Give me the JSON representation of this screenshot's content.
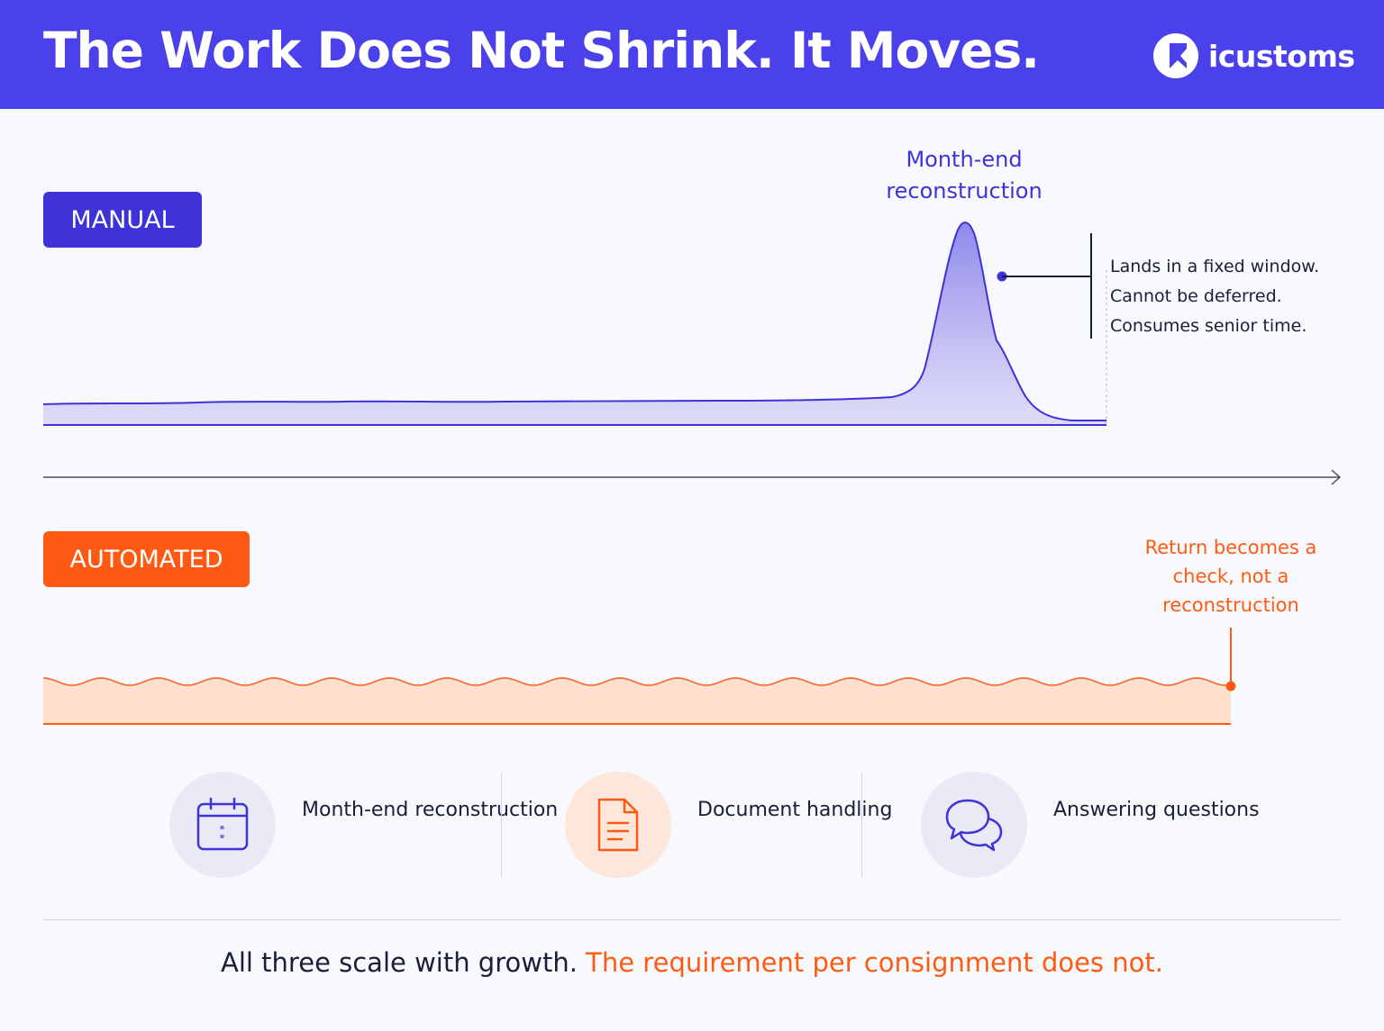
{
  "header": {
    "title": "The Work Does Not Shrink. It Moves.",
    "brand": "icustoms"
  },
  "manual": {
    "label": "MANUAL",
    "peak_label": "Month-end reconstruction",
    "notes": [
      "Lands in a fixed window.",
      "Cannot be deferred.",
      "Consumes senior time."
    ]
  },
  "automated": {
    "label": "AUTOMATED",
    "end_note": "Return becomes a check, not a reconstruction"
  },
  "categories": [
    {
      "label": "Month-end reconstruction",
      "icon": "calendar-icon",
      "color": "#3d33d8"
    },
    {
      "label": "Document handling",
      "icon": "document-icon",
      "color": "#ff5a14"
    },
    {
      "label": "Answering questions",
      "icon": "chat-bubbles-icon",
      "color": "#3d33d8"
    }
  ],
  "footer": {
    "part1": "All three scale with growth.",
    "part2": "The requirement per consignment does not."
  },
  "colors": {
    "header_bg": "#4a41ea",
    "manual": "#3d33d8",
    "automated": "#ff5a14",
    "text": "#1b1d3a"
  }
}
